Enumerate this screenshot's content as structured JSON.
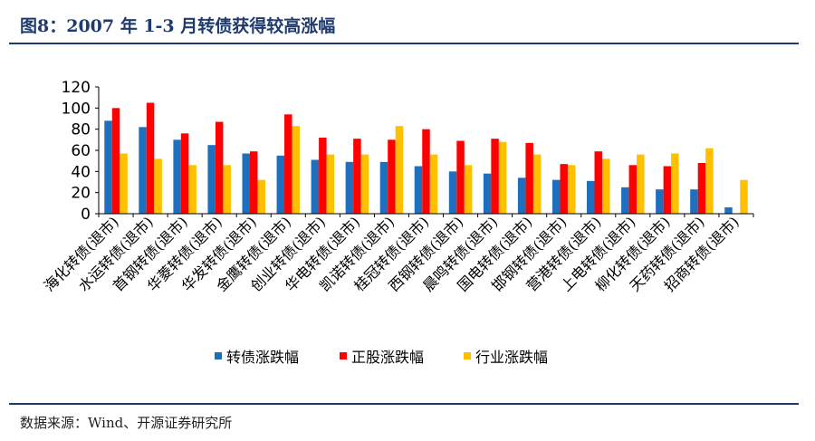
{
  "figure": {
    "title": "图8：2007 年 1-3 月转债获得较高涨幅",
    "source": "数据来源：Wind、开源证券研究所"
  },
  "chart_data": {
    "type": "bar",
    "title": "",
    "xlabel": "",
    "ylabel": "",
    "ylim": [
      0,
      120
    ],
    "yticks": [
      0,
      20,
      40,
      60,
      80,
      100,
      120
    ],
    "grid": false,
    "legend_position": "bottom",
    "categories": [
      "海化转债(退市)",
      "水运转债(退市)",
      "首钢转债(退市)",
      "华菱转债(退市)",
      "华发转债(退市)",
      "金鹰转债(退市)",
      "创业转债(退市)",
      "华电转债(退市)",
      "凯诺转债(退市)",
      "桂冠转债(退市)",
      "西钢转债(退市)",
      "晨鸣转债(退市)",
      "国电转债(退市)",
      "邯钢转债(退市)",
      "营港转债(退市)",
      "上电转债(退市)",
      "柳化转债(退市)",
      "天药转债(退市)",
      "招商转债(退市)"
    ],
    "series": [
      {
        "name": "转债涨跌幅",
        "color": "#1f6fbf",
        "values": [
          88,
          82,
          70,
          65,
          57,
          55,
          51,
          49,
          49,
          45,
          40,
          38,
          34,
          32,
          31,
          25,
          23,
          23,
          6
        ]
      },
      {
        "name": "正股涨跌幅",
        "color": "#ff0000",
        "values": [
          100,
          105,
          76,
          87,
          59,
          94,
          72,
          71,
          70,
          80,
          69,
          71,
          67,
          47,
          59,
          46,
          45,
          48,
          null
        ]
      },
      {
        "name": "行业涨跌幅",
        "color": "#ffc000",
        "values": [
          57,
          52,
          46,
          46,
          32,
          83,
          56,
          56,
          83,
          56,
          46,
          68,
          56,
          46,
          52,
          56,
          57,
          62,
          32
        ]
      }
    ]
  }
}
